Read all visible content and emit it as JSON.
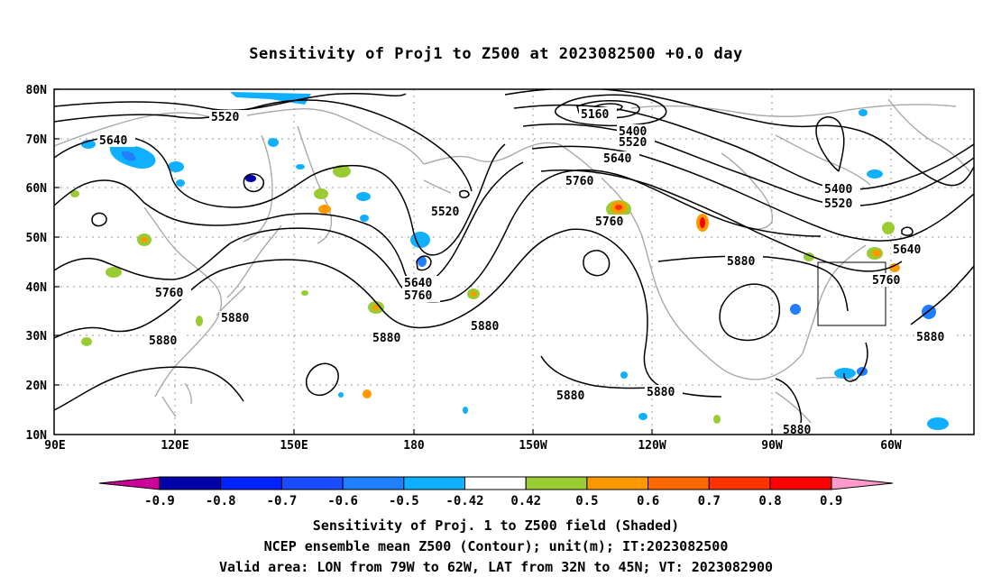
{
  "title": "Sensitivity of Proj1 to Z500 at 2023082500 +0.0 day",
  "lat_labels": [
    "80N",
    "70N",
    "60N",
    "50N",
    "40N",
    "30N",
    "20N",
    "10N"
  ],
  "lon_labels": [
    "90E",
    "120E",
    "150E",
    "180",
    "150W",
    "120W",
    "90W",
    "60W"
  ],
  "contour_labels": [
    {
      "text": "5520"
    },
    {
      "text": "5640"
    },
    {
      "text": "5160"
    },
    {
      "text": "5400"
    },
    {
      "text": "5520"
    },
    {
      "text": "5640"
    },
    {
      "text": "5760"
    },
    {
      "text": "5520"
    },
    {
      "text": "5760"
    },
    {
      "text": "5400"
    },
    {
      "text": "5520"
    },
    {
      "text": "5640"
    },
    {
      "text": "5760"
    },
    {
      "text": "5880"
    },
    {
      "text": "5640"
    },
    {
      "text": "5760"
    },
    {
      "text": "5760"
    },
    {
      "text": "5880"
    },
    {
      "text": "5880"
    },
    {
      "text": "5880"
    },
    {
      "text": "5880"
    },
    {
      "text": "5880"
    },
    {
      "text": "5880"
    },
    {
      "text": "5880"
    },
    {
      "text": "5880"
    }
  ],
  "colorbar": {
    "labels": [
      "-0.9",
      "-0.8",
      "-0.7",
      "-0.6",
      "-0.5",
      "-0.42",
      "0.42",
      "0.5",
      "0.6",
      "0.7",
      "0.8",
      "0.9"
    ],
    "colors": [
      "#0000aa",
      "#0022ff",
      "#1a4dff",
      "#1f7fff",
      "#0fb0ff",
      "#ffffff",
      "#99cc33",
      "#ff9900",
      "#ff6a00",
      "#ff3300",
      "#ff0000"
    ],
    "left_arrow_color": "#cc0099",
    "right_arrow_color": "#ff99cc"
  },
  "captions": [
    "Sensitivity of Proj. 1 to Z500 field (Shaded)",
    "NCEP ensemble mean Z500 (Contour); unit(m); IT:2023082500",
    "Valid area: LON from 79W to 62W, LAT from 32N to 45N; VT: 2023082900"
  ],
  "colors": {
    "land": "#aaaaaa",
    "contour": "#000000",
    "grid": "#999999",
    "negative": "#0fb0ff",
    "positive": "#99cc33"
  }
}
